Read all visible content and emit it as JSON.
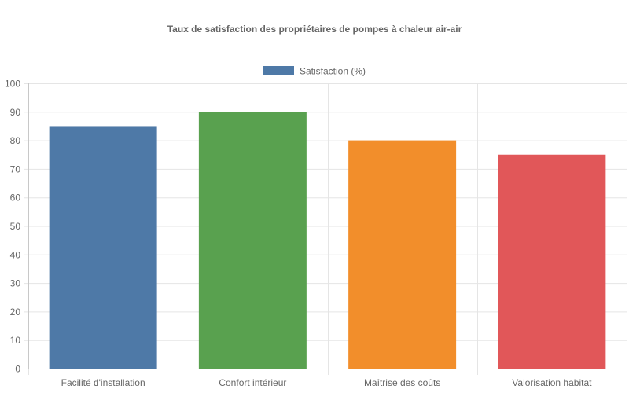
{
  "chart_data": {
    "type": "bar",
    "title": "Taux de satisfaction des propriétaires de pompes à chaleur air-air",
    "categories": [
      "Facilité d'installation",
      "Confort intérieur",
      "Maîtrise des coûts",
      "Valorisation habitat"
    ],
    "series": [
      {
        "name": "Satisfaction (%)",
        "values": [
          85,
          90,
          80,
          75
        ],
        "colors": [
          "#4e79a7",
          "#59a14f",
          "#f28e2b",
          "#e15759"
        ]
      }
    ],
    "ylim": [
      0,
      100
    ],
    "yticks": [
      0,
      10,
      20,
      30,
      40,
      50,
      60,
      70,
      80,
      90,
      100
    ],
    "grid": true,
    "legend_position": "top-center"
  }
}
